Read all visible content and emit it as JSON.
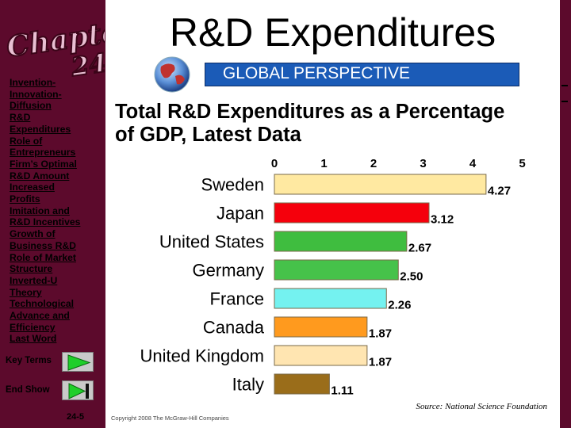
{
  "sidebar": {
    "chapter_word": "Chapter",
    "chapter_number": "24",
    "nav_items": [
      "Invention-",
      "Innovation-",
      "Diffusion",
      "R&D",
      "Expenditures",
      "Role of",
      "Entrepreneurs",
      "Firm’s Optimal",
      "R&D Amount",
      "Increased",
      "Profits",
      "Imitation and",
      "R&D Incentives",
      "Growth of",
      "Business R&D",
      "Role of Market",
      "Structure",
      "Inverted-U",
      "Theory",
      "Technological",
      "Advance and",
      "Efficiency",
      "Last Word"
    ],
    "key_terms_label": "Key Terms",
    "end_show_label": "End Show",
    "page_number": "24-5"
  },
  "header": {
    "title": "R&D Expenditures",
    "banner": "GLOBAL PERSPECTIVE",
    "subtitle_line1": "Total R&D Expenditures as a Percentage",
    "subtitle_line2": "of GDP, Latest Data"
  },
  "footer": {
    "source": "Source: National Science Foundation",
    "copyright": "Copyright 2008 The McGraw-Hill Companies"
  },
  "colors": {
    "sidebar": "#5c0a2c",
    "banner": "#1b5bb7",
    "bar_outline": "#7a6a4a"
  },
  "chart_data": {
    "type": "bar",
    "orientation": "horizontal",
    "title": "Total R&D Expenditures as a Percentage of GDP, Latest Data",
    "categories": [
      "Sweden",
      "Japan",
      "United States",
      "Germany",
      "France",
      "Canada",
      "United Kingdom",
      "Italy"
    ],
    "values": [
      4.27,
      3.12,
      2.67,
      2.5,
      2.26,
      1.87,
      1.87,
      1.11
    ],
    "value_labels": [
      "4.27",
      "3.12",
      "2.67",
      "2.50",
      "2.26",
      "1.87",
      "1.87",
      "1.11"
    ],
    "bar_colors": [
      "#ffe9a1",
      "#f5000c",
      "#3fbd3f",
      "#46c24a",
      "#74f2f0",
      "#ff9a1e",
      "#ffe5b1",
      "#9a6d1a"
    ],
    "x_ticks": [
      "0",
      "1",
      "2",
      "3",
      "4",
      "5"
    ],
    "xlim": [
      0,
      5
    ],
    "axis_position": "top",
    "xlabel": "",
    "ylabel": "",
    "grid": false,
    "legend": "none",
    "source": "Source: National Science Foundation"
  }
}
